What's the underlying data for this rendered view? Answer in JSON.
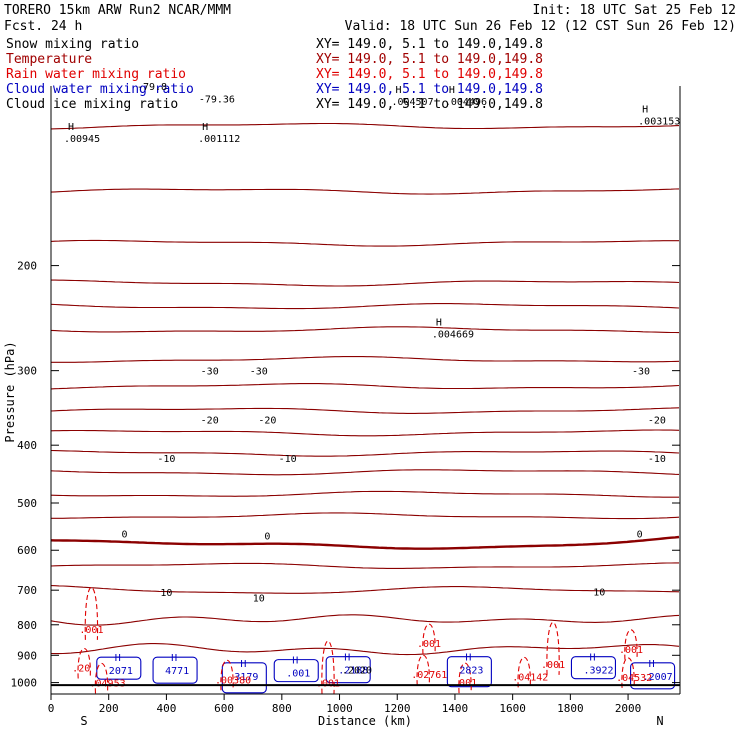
{
  "header": {
    "model_line": "TORERO  15km ARW   Run2    NCAR/MMM",
    "init_line": "Init: 18 UTC Sat 25 Feb 12",
    "fcst_line": "Fcst.   24 h",
    "valid_line": "Valid: 18 UTC Sun 26 Feb 12 (12 CST Sun 26 Feb 12)"
  },
  "legend": [
    {
      "name": "Snow mixing ratio",
      "xy": "XY= 149.0,  5.1 to 149.0,149.8",
      "color": "#000000"
    },
    {
      "name": "Temperature",
      "xy": "XY= 149.0,  5.1 to 149.0,149.8",
      "color": "#a00000"
    },
    {
      "name": "Rain water mixing ratio",
      "xy": "XY= 149.0,  5.1 to 149.0,149.8",
      "color": "#e00000"
    },
    {
      "name": "Cloud water mixing ratio",
      "xy": "XY= 149.0,  5.1 to 149.0,149.8",
      "color": "#0000c0"
    },
    {
      "name": "Cloud ice mixing ratio",
      "xy": "XY= 149.0,  5.1 to 149.0,149.8",
      "color": "#000000"
    }
  ],
  "chart_data": {
    "type": "contour-cross-section",
    "xlabel": "Distance (km)",
    "ylabel": "Pressure (hPa)",
    "xlim": [
      0,
      2180
    ],
    "ylim_pressure": [
      100,
      1045
    ],
    "x_ticks": [
      0,
      200,
      400,
      600,
      800,
      1000,
      1200,
      1400,
      1600,
      1800,
      2000
    ],
    "y_ticks": [
      200,
      300,
      400,
      500,
      600,
      700,
      800,
      900,
      1000
    ],
    "endpoint_labels": {
      "left": "S",
      "right": "N"
    },
    "temperature_color": "#8b0000",
    "temperature_levels": [
      -80,
      -75,
      -70,
      -65,
      -60,
      -55,
      -50,
      -45,
      -40,
      -35,
      -30,
      -25,
      -20,
      -15,
      -10,
      -5,
      0,
      5,
      10,
      15,
      20
    ],
    "temperature_profile": [
      {
        "p": 170,
        "t": -62
      },
      {
        "p": 210,
        "t": -56
      },
      {
        "p": 250,
        "t": -46
      },
      {
        "p": 300,
        "t": -38
      },
      {
        "p": 350,
        "t": -30
      },
      {
        "p": 400,
        "t": -22
      },
      {
        "p": 450,
        "t": -14
      },
      {
        "p": 500,
        "t": -8
      },
      {
        "p": 560,
        "t": -1
      },
      {
        "p": 600,
        "t": 2
      },
      {
        "p": 700,
        "t": 10
      },
      {
        "p": 800,
        "t": 16
      },
      {
        "p": 900,
        "t": 21
      },
      {
        "p": 1010,
        "t": 28
      }
    ],
    "temperature_labels": [
      {
        "text": "-79.36",
        "x": 575,
        "p": 105
      },
      {
        "text": "-79.8",
        "x": 350,
        "p": 100
      },
      {
        "text": "-30",
        "x": 550,
        "p": 300
      },
      {
        "text": "-30",
        "x": 720,
        "p": 300
      },
      {
        "text": "-30",
        "x": 2045,
        "p": 300
      },
      {
        "text": "-20",
        "x": 550,
        "p": 362
      },
      {
        "text": "-20",
        "x": 750,
        "p": 362
      },
      {
        "text": "-20",
        "x": 2100,
        "p": 362
      },
      {
        "text": "-10",
        "x": 400,
        "p": 420
      },
      {
        "text": "-10",
        "x": 820,
        "p": 420
      },
      {
        "text": "-10",
        "x": 2100,
        "p": 420
      },
      {
        "text": "0",
        "x": 255,
        "p": 562
      },
      {
        "text": "0",
        "x": 750,
        "p": 567
      },
      {
        "text": "0",
        "x": 2040,
        "p": 562
      },
      {
        "text": "10",
        "x": 400,
        "p": 705
      },
      {
        "text": "10",
        "x": 720,
        "p": 720
      },
      {
        "text": "10",
        "x": 1900,
        "p": 703
      }
    ],
    "ice_maxima": [
      {
        "text": ".00945",
        "x": 45,
        "p": 120
      },
      {
        "text": ".001112",
        "x": 510,
        "p": 120
      },
      {
        "text": ".004507",
        "x": 1180,
        "p": 104
      },
      {
        "text": ".004496",
        "x": 1365,
        "p": 104
      },
      {
        "text": ".004669",
        "x": 1320,
        "p": 255
      },
      {
        "text": ".003153",
        "x": 2035,
        "p": 112
      }
    ],
    "cloud_water_maxima": [
      {
        "text": "2071",
        "x": 235,
        "p": 957
      },
      {
        "text": "4771",
        "x": 430,
        "p": 957
      },
      {
        "text": "3179",
        "x": 670,
        "p": 978
      },
      {
        "text": ".001",
        "x": 850,
        "p": 966
      },
      {
        "text": ".2188",
        "x": 1030,
        "p": 955
      },
      {
        "text": "2823",
        "x": 1450,
        "p": 955
      },
      {
        "text": ".3922",
        "x": 1880,
        "p": 955
      },
      {
        "text": ".2007",
        "x": 2085,
        "p": 978
      }
    ],
    "rain_maxima": [
      {
        "text": ".001",
        "x": 140,
        "p": 816
      },
      {
        "text": ".20",
        "x": 115,
        "p": 947
      },
      {
        "text": ".04953",
        "x": 175,
        "p": 1003
      },
      {
        "text": ".00380",
        "x": 610,
        "p": 991
      },
      {
        "text": ".001",
        "x": 960,
        "p": 1004
      },
      {
        "text": ".02761",
        "x": 1290,
        "p": 972
      },
      {
        "text": ".001",
        "x": 1310,
        "p": 862
      },
      {
        "text": ".04142",
        "x": 1640,
        "p": 980
      },
      {
        "text": ".001",
        "x": 1740,
        "p": 934
      },
      {
        "text": ".04532",
        "x": 2000,
        "p": 982
      },
      {
        "text": ".001",
        "x": 2010,
        "p": 881
      },
      {
        "text": ".001",
        "x": 1435,
        "p": 1002
      }
    ],
    "snow_maxima": [
      {
        "text": ".2020",
        "x": 1050,
        "p": 955
      }
    ]
  }
}
